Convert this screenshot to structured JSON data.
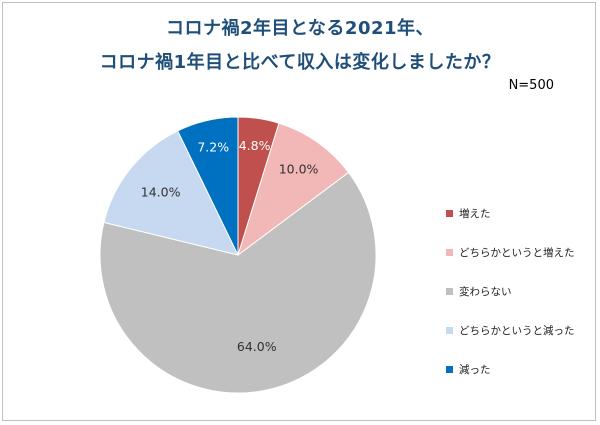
{
  "chart_data": {
    "type": "pie",
    "title_line1": "コロナ禍2年目となる2021年、",
    "title_line2": "コロナ禍1年目と比べて収入は変化しましたか？",
    "note": "N=500",
    "categories": [
      "増えた",
      "どちらかというと増えた",
      "変わらない",
      "どちらかというと減った",
      "減った"
    ],
    "values": [
      4.8,
      10.0,
      64.0,
      14.0,
      7.2
    ],
    "data_labels": [
      "4.8%",
      "10.0%",
      "64.0%",
      "14.0%",
      "7.2%"
    ],
    "colors": [
      "#c0504d",
      "#f2b8b8",
      "#c0c0c0",
      "#c6d9f1",
      "#0070c0"
    ],
    "label_colors": [
      "#ffffff",
      "#333333",
      "#333333",
      "#333333",
      "#ffffff"
    ],
    "legend_position": "right",
    "start_angle": "12 o'clock",
    "direction": "clockwise"
  }
}
